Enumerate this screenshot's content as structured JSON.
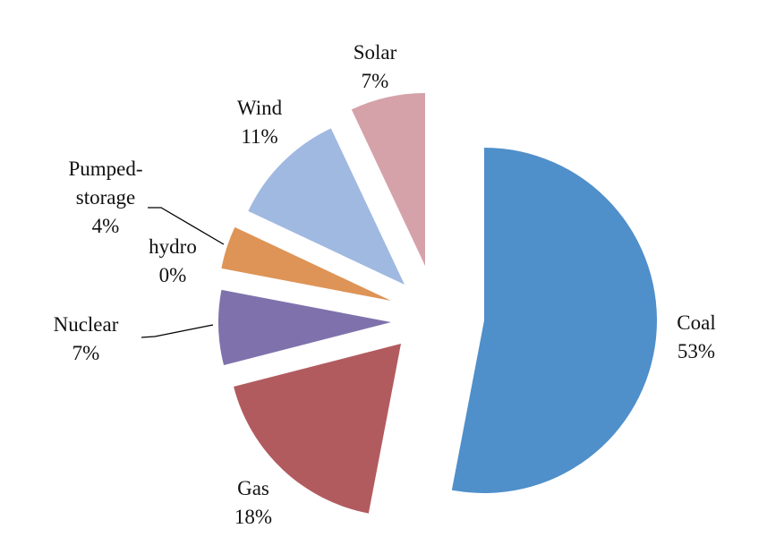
{
  "chart_data": {
    "type": "pie",
    "title": "",
    "legend": "none",
    "labels_shown": "category name and percentage, outside slices",
    "exploded": true,
    "start_angle_deg": 0,
    "direction": "clockwise",
    "slices": [
      {
        "name": "Coal",
        "value": 53,
        "label": "53%",
        "color": "#4F8FCA"
      },
      {
        "name": "Gas",
        "value": 18,
        "label": "18%",
        "color": "#B25B5F"
      },
      {
        "name": "Nuclear",
        "value": 7,
        "label": "7%",
        "color": "#7F72AC"
      },
      {
        "name": "hydro",
        "value": 0,
        "label": "0%",
        "color": "#5FA8A0"
      },
      {
        "name": "Pumped-storage",
        "value": 4,
        "label": "4%",
        "color": "#DE9456"
      },
      {
        "name": "Wind",
        "value": 11,
        "label": "11%",
        "color": "#A0B9E1"
      },
      {
        "name": "Solar",
        "value": 7,
        "label": "7%",
        "color": "#D5A2A9"
      }
    ]
  }
}
